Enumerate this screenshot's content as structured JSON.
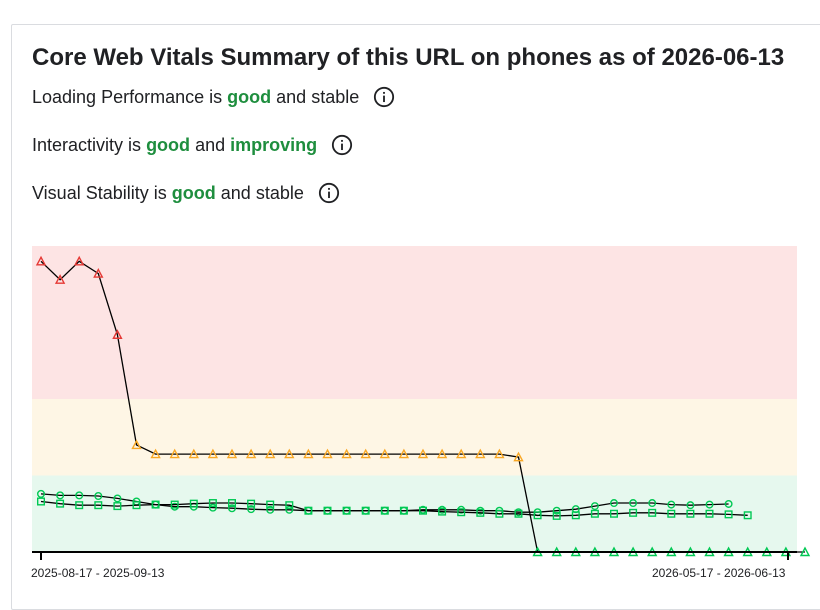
{
  "title": "Core Web Vitals Summary of this URL on phones as of 2026-06-13",
  "metrics": [
    {
      "name": "Loading Performance",
      "is": "is",
      "rating": "good",
      "and": "and",
      "trend": "stable",
      "trend_highlight": false,
      "info_icon": "info-icon"
    },
    {
      "name": "Interactivity",
      "is": "is",
      "rating": "good",
      "and": "and",
      "trend": "improving",
      "trend_highlight": true,
      "info_icon": "info-icon"
    },
    {
      "name": "Visual Stability",
      "is": "is",
      "rating": "good",
      "and": "and",
      "trend": "stable",
      "trend_highlight": false,
      "info_icon": "info-icon"
    }
  ],
  "colors": {
    "good": "#1e8e3e",
    "poor_band": "#fde4e4",
    "needs_improvement_band": "#fef6e5",
    "good_band": "#e6f8ee",
    "marker_poor": "#e53935",
    "marker_needs_improvement": "#f9a825",
    "marker_good": "#00c853",
    "line": "#000000"
  },
  "chart_data": {
    "type": "line",
    "x_tick_labels": [
      "2025-08-17 - 2025-09-13",
      "2026-05-17 - 2026-06-13"
    ],
    "ylim": [
      0,
      1
    ],
    "bands": [
      {
        "rating": "good",
        "from": 0,
        "to": 0.25
      },
      {
        "rating": "needs-improvement",
        "from": 0.25,
        "to": 0.5
      },
      {
        "rating": "poor",
        "from": 0.5,
        "to": 1
      }
    ],
    "series": [
      {
        "marker": "triangle",
        "values": [
          0.95,
          0.89,
          0.95,
          0.91,
          0.71,
          0.35,
          0.32,
          0.32,
          0.32,
          0.32,
          0.32,
          0.32,
          0.32,
          0.32,
          0.32,
          0.32,
          0.32,
          0.32,
          0.32,
          0.32,
          0.32,
          0.32,
          0.32,
          0.32,
          0.32,
          0.31,
          0.0,
          0.0,
          0.0,
          0.0,
          0.0,
          0.0,
          0.0,
          0.0,
          0.0,
          0.0,
          0.0,
          0.0,
          0.0,
          0.0,
          0.0
        ]
      },
      {
        "marker": "circle",
        "values": [
          0.19,
          0.185,
          0.185,
          0.183,
          0.175,
          0.165,
          0.155,
          0.148,
          0.148,
          0.145,
          0.143,
          0.14,
          0.138,
          0.138,
          0.135,
          0.135,
          0.135,
          0.135,
          0.135,
          0.135,
          0.138,
          0.138,
          0.138,
          0.135,
          0.135,
          0.13,
          0.13,
          0.135,
          0.14,
          0.15,
          0.16,
          0.16,
          0.16,
          0.155,
          0.153,
          0.155,
          0.157
        ]
      },
      {
        "marker": "square",
        "values": [
          0.165,
          0.158,
          0.153,
          0.153,
          0.15,
          0.153,
          0.155,
          0.155,
          0.158,
          0.16,
          0.16,
          0.158,
          0.155,
          0.153,
          0.135,
          0.135,
          0.135,
          0.135,
          0.135,
          0.135,
          0.135,
          0.132,
          0.13,
          0.128,
          0.125,
          0.125,
          0.12,
          0.118,
          0.12,
          0.125,
          0.125,
          0.128,
          0.128,
          0.125,
          0.125,
          0.125,
          0.123,
          0.12
        ]
      }
    ]
  }
}
